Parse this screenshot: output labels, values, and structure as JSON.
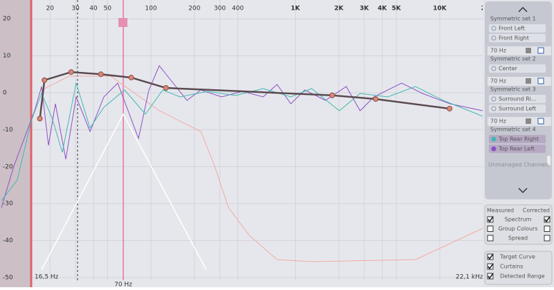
{
  "frequency_axis": {
    "ticks": [
      20,
      30,
      40,
      50,
      100,
      200,
      300,
      400,
      {
        "value": 1000,
        "label": "1K"
      },
      {
        "value": 2000,
        "label": "2K"
      },
      {
        "value": 3000,
        "label": "3K"
      },
      {
        "value": 4000,
        "label": "4K"
      },
      {
        "value": 5000,
        "label": "5K"
      },
      {
        "value": 10000,
        "label": "10K"
      },
      {
        "value": 20000,
        "label": "2"
      }
    ]
  },
  "level_axis": {
    "ticks": [
      20,
      10,
      0,
      -10,
      -20,
      -30,
      -40,
      -50
    ]
  },
  "range": {
    "low": "16,5 Hz",
    "high": "22,1 kHz",
    "crossover": "70 Hz"
  },
  "target_points": [
    {
      "hz": 17,
      "db": -7
    },
    {
      "hz": 18.3,
      "db": 3.4
    },
    {
      "hz": 28,
      "db": 5.6
    },
    {
      "hz": 45,
      "db": 5
    },
    {
      "hz": 73,
      "db": 4.1
    },
    {
      "hz": 127,
      "db": 1.3
    },
    {
      "hz": 1800,
      "db": -0.7
    },
    {
      "hz": 3600,
      "db": -1.7
    },
    {
      "hz": 11700,
      "db": -4.3
    }
  ],
  "channel_panel": {
    "groups": [
      {
        "title": "Symmetric set 1",
        "channels": [
          {
            "name": "Front Left",
            "color": "#8f96a6"
          },
          {
            "name": "Front Right",
            "color": "#8f96a6"
          }
        ]
      },
      {
        "crossover": "70 Hz",
        "title": "Symmetric set 2",
        "channels": [
          {
            "name": "Center",
            "color": "#8f96a6"
          }
        ]
      },
      {
        "crossover": "70 Hz",
        "title": "Symmetric set 3",
        "channels": [
          {
            "name": "Surround Ri...",
            "color": "#8f96a6"
          },
          {
            "name": "Surround Left",
            "color": "#8f96a6"
          }
        ]
      },
      {
        "crossover": "70 Hz",
        "title": "Symmetric set 4",
        "channels": [
          {
            "name": "Top Rear Right",
            "color": "#3fb8b0"
          },
          {
            "name": "Top Rear Left",
            "color": "#8a4fc4"
          }
        ]
      }
    ],
    "unmanaged": "Unmanaged Channels"
  },
  "display_options": {
    "measured": "Measured",
    "corrected": "Corrected",
    "rows": [
      {
        "label": "Spectrum",
        "measured": true,
        "corrected": true
      },
      {
        "label": "Group Colours",
        "measured": false,
        "corrected": false
      },
      {
        "label": "Spread",
        "measured": false,
        "corrected": false
      }
    ]
  },
  "overlay_options": [
    {
      "label": "Target Curve",
      "checked": true
    },
    {
      "label": "Curtains",
      "checked": true
    },
    {
      "label": "Detected Range",
      "checked": true
    }
  ]
}
